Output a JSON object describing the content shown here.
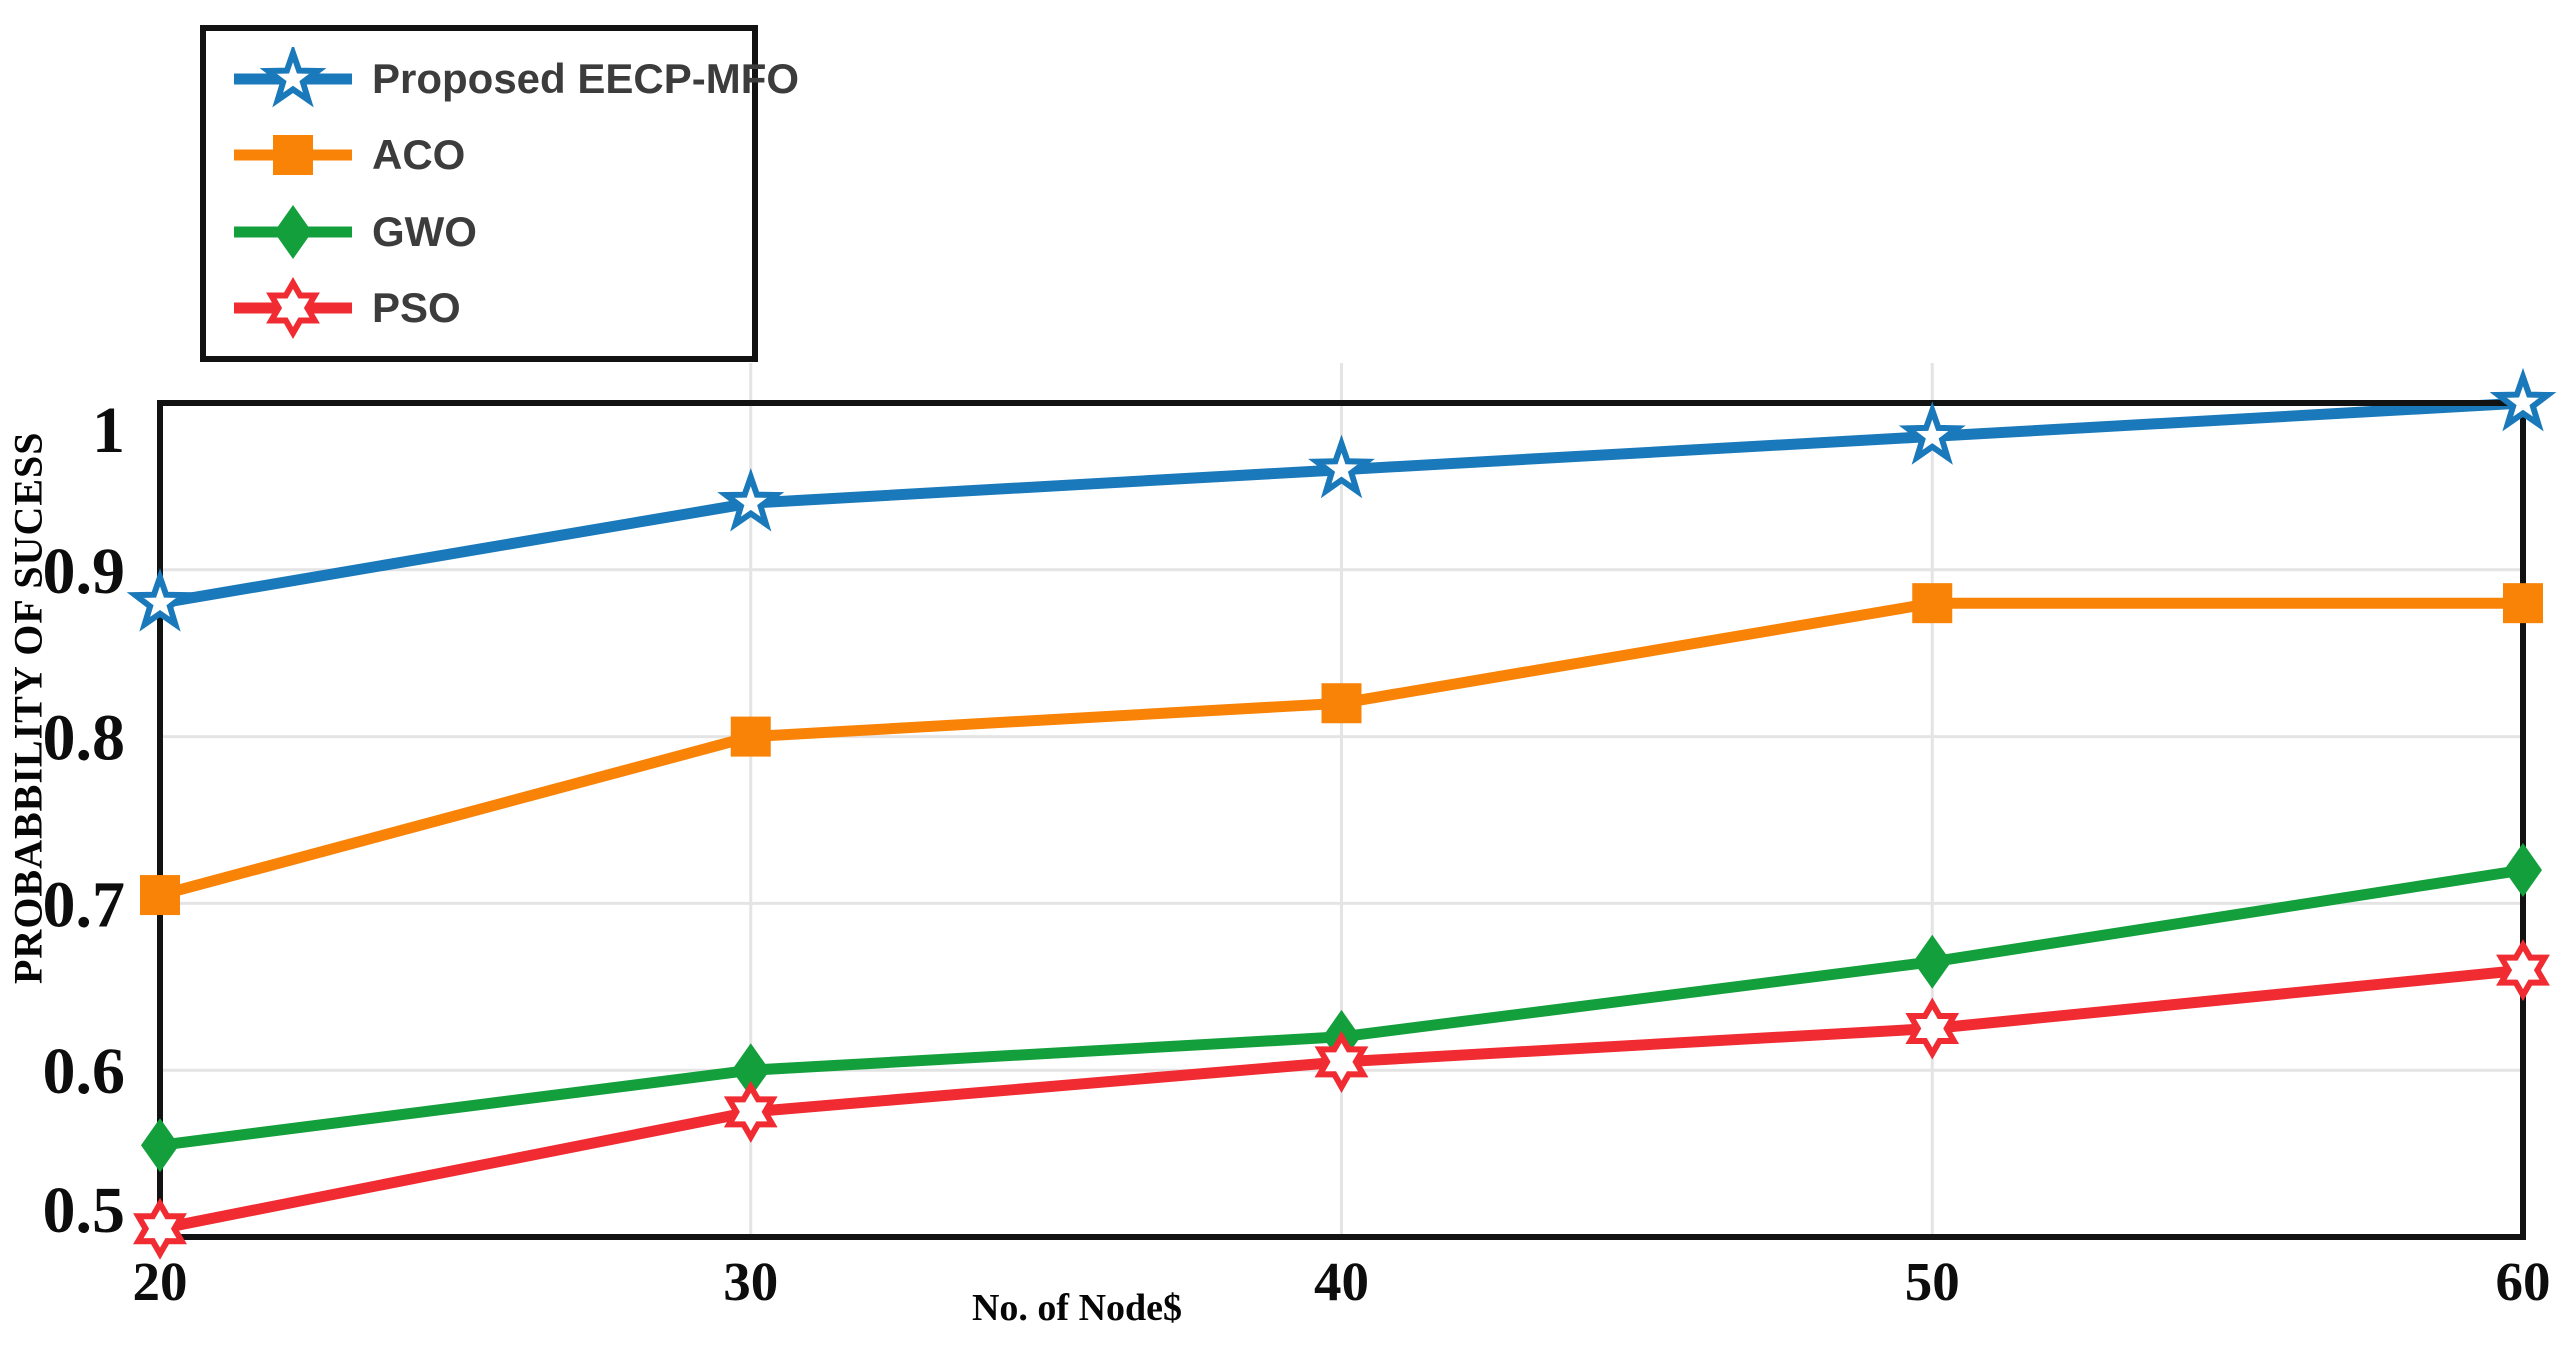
{
  "chart_data": {
    "type": "line",
    "xlabel": "No. of Node$",
    "ylabel": "PROBABBILITY OF SUCESS",
    "categories": [
      20,
      30,
      40,
      50,
      60
    ],
    "x_tick_labels": [
      "20",
      "30",
      "40",
      "50",
      "60"
    ],
    "y_tick_values": [
      1.0,
      0.9,
      0.8,
      0.7,
      0.6,
      0.5
    ],
    "y_tick_labels": [
      "1",
      "0.9",
      "0.8",
      "0.7",
      "0.6",
      "0.5"
    ],
    "xlim": [
      20,
      60
    ],
    "ylim": [
      0.5,
      1.0
    ],
    "grid": {
      "horizontal": true,
      "vertical": true,
      "color": "#e4e4e4"
    },
    "axis_color": "#121212",
    "legend_position": "top-left",
    "legend_text_color": "#3c3c3c",
    "series": [
      {
        "name": "Proposed EECP-MFO",
        "color": "#1a79ba",
        "marker": "star5-open",
        "values": [
          0.88,
          0.94,
          0.96,
          0.98,
          1.0
        ]
      },
      {
        "name": "ACO",
        "color": "#f98307",
        "marker": "square-filled",
        "values": [
          0.705,
          0.8,
          0.82,
          0.88,
          0.88
        ]
      },
      {
        "name": "GWO",
        "color": "#13a03c",
        "marker": "diamond-filled",
        "values": [
          0.555,
          0.6,
          0.62,
          0.665,
          0.72
        ]
      },
      {
        "name": "PSO",
        "color": "#f02b31",
        "marker": "star6-open",
        "values": [
          0.505,
          0.575,
          0.605,
          0.625,
          0.66
        ]
      }
    ]
  }
}
